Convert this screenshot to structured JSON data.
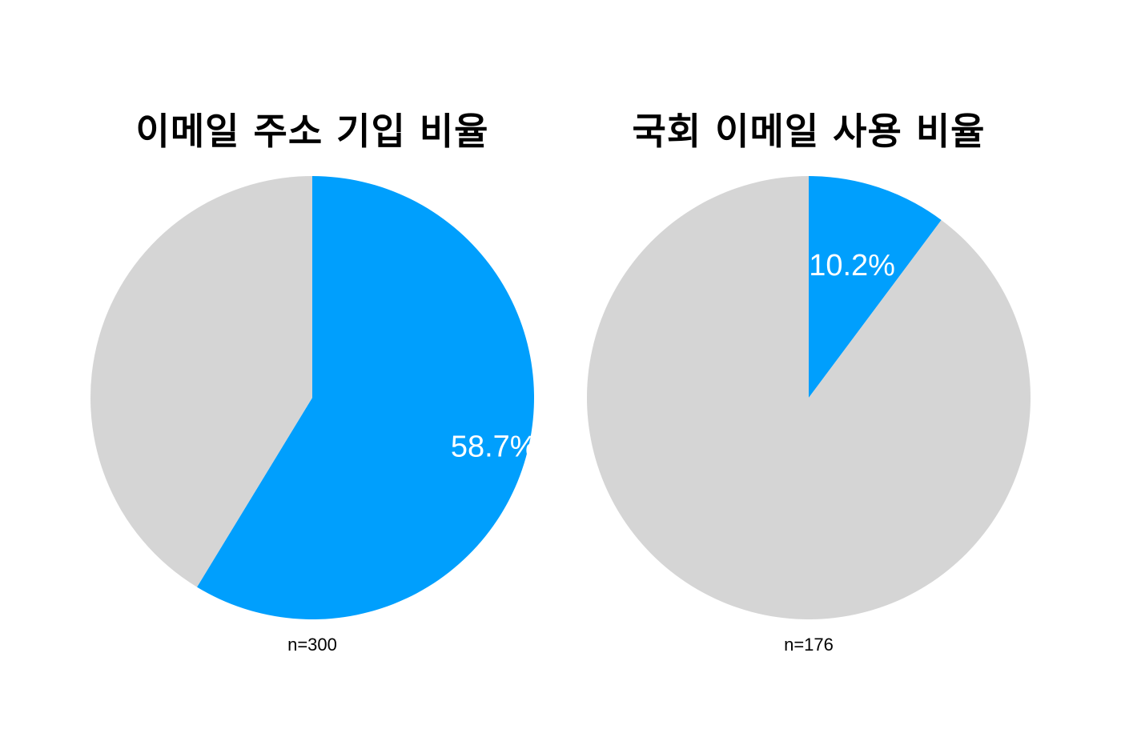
{
  "colors": {
    "highlight": "#009FFD",
    "rest": "#D5D5D5",
    "label": "#FFFFFF"
  },
  "chart_data": [
    {
      "type": "pie",
      "title": "이메일 주소 기입 비율",
      "slices": [
        {
          "label": "58.7%",
          "value": 58.7,
          "color": "#009FFD"
        },
        {
          "label": "",
          "value": 41.3,
          "color": "#D5D5D5"
        }
      ],
      "start_angle": "12 o'clock",
      "direction": "clockwise",
      "note": "n=300"
    },
    {
      "type": "pie",
      "title": "국회 이메일 사용 비율",
      "slices": [
        {
          "label": "10.2%",
          "value": 10.2,
          "color": "#009FFD"
        },
        {
          "label": "",
          "value": 89.8,
          "color": "#D5D5D5"
        }
      ],
      "start_angle": "12 o'clock",
      "direction": "clockwise",
      "note": "n=176"
    }
  ]
}
